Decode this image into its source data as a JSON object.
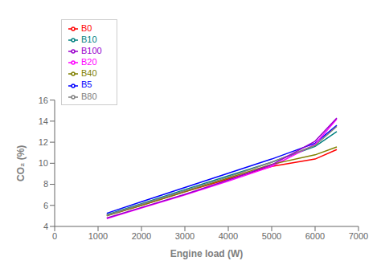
{
  "chart_data": {
    "type": "line",
    "xlabel": "Engine load (W)",
    "ylabel": "CO₂ (%)",
    "xlim": [
      0,
      7000
    ],
    "ylim": [
      4,
      16
    ],
    "xticks": [
      0,
      1000,
      2000,
      3000,
      4000,
      5000,
      6000,
      7000
    ],
    "yticks": [
      4,
      6,
      8,
      10,
      12,
      14,
      16
    ],
    "x": [
      1200,
      2000,
      3000,
      4000,
      5000,
      6000,
      6500
    ],
    "series": [
      {
        "name": "B0",
        "color": "#ff0000",
        "values": [
          5.05,
          6.0,
          7.3,
          8.5,
          9.7,
          10.4,
          11.3
        ]
      },
      {
        "name": "B5",
        "color": "#0000ff",
        "values": [
          5.25,
          6.35,
          7.7,
          9.05,
          10.4,
          11.9,
          13.6
        ]
      },
      {
        "name": "B10",
        "color": "#008080",
        "values": [
          5.1,
          6.15,
          7.5,
          8.8,
          10.1,
          11.6,
          13.0
        ]
      },
      {
        "name": "B20",
        "color": "#ff00ff",
        "values": [
          4.75,
          5.75,
          7.0,
          8.3,
          9.7,
          11.8,
          14.2
        ]
      },
      {
        "name": "B40",
        "color": "#808000",
        "values": [
          5.0,
          6.0,
          7.3,
          8.6,
          9.9,
          10.8,
          11.55
        ]
      },
      {
        "name": "B80",
        "color": "#808080",
        "values": [
          5.05,
          6.1,
          7.4,
          8.7,
          10.1,
          11.7,
          13.5
        ]
      },
      {
        "name": "B100",
        "color": "#9900cc",
        "values": [
          4.8,
          5.8,
          7.05,
          8.4,
          9.85,
          12.1,
          14.3
        ]
      }
    ],
    "legend": "upper left",
    "grid": false
  }
}
